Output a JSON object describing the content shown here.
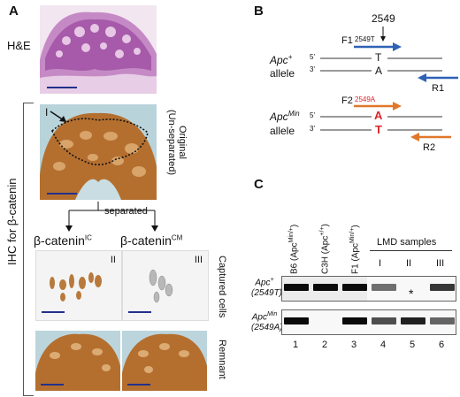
{
  "panel_a": {
    "letter": "A",
    "he_label": "H&E",
    "ihc_label": "IHC for β-catenin",
    "original_label_1": "Original",
    "original_label_2": "(Un-separated)",
    "roi_label": "I",
    "separated_label": "separated",
    "ic_label_main": "β-catenin",
    "ic_label_sup": "IC",
    "cm_label_main": "β-catenin",
    "cm_label_sup": "CM",
    "ic_roman": "II",
    "cm_roman": "III",
    "captured_label": "Captured cells",
    "remnant_label": "Remnant"
  },
  "panel_b": {
    "letter": "B",
    "position": "2549",
    "plus_allele_1": "Apc",
    "plus_allele_sup": "+",
    "plus_allele_2": "allele",
    "min_allele_1": "Apc",
    "min_allele_sup": "Min",
    "min_allele_2": "allele",
    "f1": "F1",
    "f1_tag": "2549T",
    "f2": "F2",
    "f2_tag": "2549A",
    "r1": "R1",
    "r2": "R2",
    "five_prime": "5'",
    "three_prime": "3'",
    "plus_top_base": "T",
    "plus_bottom_base": "A",
    "min_top_base": "A",
    "min_bottom_base": "T",
    "blue": "#2f62b5",
    "orange": "#e0782a",
    "red": "#d9262a"
  },
  "panel_c": {
    "letter": "C",
    "lanes": [
      {
        "label": "B6 (Apc",
        "sup": "Min/+",
        "tail": ")",
        "number": "1"
      },
      {
        "label": "C3H (Apc",
        "sup": "+/+",
        "tail": ")",
        "number": "2"
      },
      {
        "label": "F1 (Apc",
        "sup": "Min/+",
        "tail": ")",
        "number": "3"
      },
      {
        "label": "I",
        "sup": "",
        "tail": "",
        "number": "4"
      },
      {
        "label": "II",
        "sup": "",
        "tail": "",
        "number": "5"
      },
      {
        "label": "III",
        "sup": "",
        "tail": "",
        "number": "6"
      }
    ],
    "lmd_label": "LMD samples",
    "row1_label_1": "Apc",
    "row1_label_sup": "+",
    "row1_label_2": "(2549T)",
    "row2_label_1": "Apc",
    "row2_label_sup": "Min",
    "row2_label_2": "(2549A)",
    "asterisk": "*",
    "row1_intensity": [
      1.0,
      1.0,
      1.0,
      0.55,
      0.0,
      0.8
    ],
    "row2_intensity": [
      1.0,
      0.0,
      1.0,
      0.7,
      0.9,
      0.6
    ]
  }
}
